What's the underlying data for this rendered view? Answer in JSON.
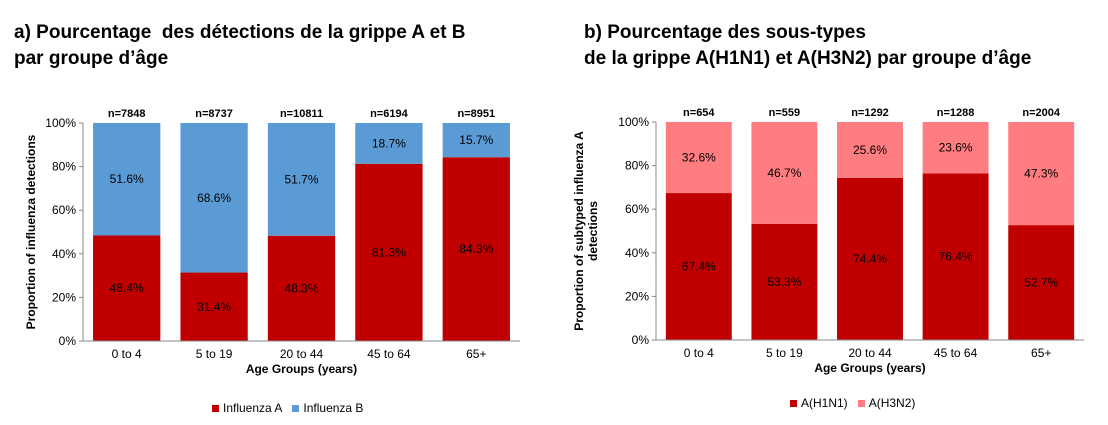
{
  "chart_data": [
    {
      "type": "bar",
      "stacked": true,
      "title": [
        "a) Pourcentage  des détections de la grippe A et B",
        "par groupe d’âge"
      ],
      "categories": [
        "0 to 4",
        "5 to 19",
        "20 to 44",
        "45 to 64",
        "65+"
      ],
      "n_labels": [
        "n=7848",
        "n=8737",
        "n=10811",
        "n=6194",
        "n=8951"
      ],
      "series": [
        {
          "name": "Influenza A",
          "values": [
            48.4,
            31.4,
            48.3,
            81.3,
            84.3
          ],
          "labels": [
            "48.4%",
            "31.4%",
            "48.3%",
            "81.3%",
            "84.3%"
          ],
          "color": "#C00000"
        },
        {
          "name": "Influenza B",
          "values": [
            51.6,
            68.6,
            51.7,
            18.7,
            15.7
          ],
          "labels": [
            "51.6%",
            "68.6%",
            "51.7%",
            "18.7%",
            "15.7%"
          ],
          "color": "#5B9BD5"
        }
      ],
      "xlabel": "Age Groups (years)",
      "ylabel": [
        "Proportion of influenza detections"
      ],
      "ylim": [
        0,
        100
      ],
      "yticks": [
        "0%",
        "20%",
        "40%",
        "60%",
        "80%",
        "100%"
      ],
      "legend_position": "bottom"
    },
    {
      "type": "bar",
      "stacked": true,
      "title": [
        "b) Pourcentage des sous-types",
        "de la grippe A(H1N1) et A(H3N2) par groupe d’âge"
      ],
      "categories": [
        "0 to 4",
        "5 to 19",
        "20 to 44",
        "45 to 64",
        "65+"
      ],
      "n_labels": [
        "n=654",
        "n=559",
        "n=1292",
        "n=1288",
        "n=2004"
      ],
      "series": [
        {
          "name": "A(H1N1)",
          "values": [
            67.4,
            53.3,
            74.4,
            76.4,
            52.7
          ],
          "labels": [
            "67.4%",
            "53.3%",
            "74.4%",
            "76.4%",
            "52.7%"
          ],
          "color": "#C00000"
        },
        {
          "name": "A(H3N2)",
          "values": [
            32.6,
            46.7,
            25.6,
            23.6,
            47.3
          ],
          "labels": [
            "32.6%",
            "46.7%",
            "25.6%",
            "23.6%",
            "47.3%"
          ],
          "color": "#FF7C80"
        }
      ],
      "xlabel": "Age Groups (years)",
      "ylabel": [
        "Proportion  of subtyped influenza A",
        "detections"
      ],
      "ylim": [
        0,
        100
      ],
      "yticks": [
        "0%",
        "20%",
        "40%",
        "60%",
        "80%",
        "100%"
      ],
      "legend_position": "bottom"
    }
  ]
}
